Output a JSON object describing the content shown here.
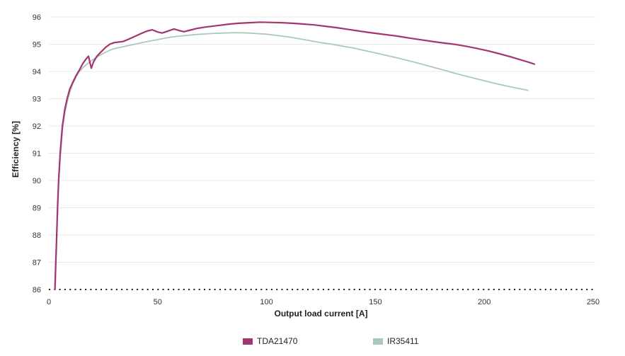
{
  "chart_data": {
    "type": "line",
    "title": "",
    "xlabel": "Output load current [A]",
    "ylabel": "Efficiency [%]",
    "xlim": [
      0,
      250
    ],
    "ylim": [
      86,
      96
    ],
    "x_ticks": [
      0,
      50,
      100,
      150,
      200,
      250
    ],
    "y_ticks": [
      86,
      87,
      88,
      89,
      90,
      91,
      92,
      93,
      94,
      95,
      96
    ],
    "grid": "horizontal-only",
    "baseline_style": "dotted-black-at-86",
    "legend_position": "bottom-center",
    "colors": {
      "gridline": "#e8e8e8",
      "baseline_dots": "#1d1d1d",
      "tick_text": "#33333c",
      "title_text": "#1f1f29",
      "background": "#ffffff"
    },
    "series": [
      {
        "name": "TDA21470",
        "color": "#a43572",
        "line_width": 2.2,
        "points": [
          [
            2.8,
            86.0
          ],
          [
            3.2,
            87.0
          ],
          [
            3.6,
            88.0
          ],
          [
            4.0,
            89.0
          ],
          [
            4.5,
            90.0
          ],
          [
            5.2,
            91.0
          ],
          [
            6.2,
            92.0
          ],
          [
            7.3,
            92.6
          ],
          [
            8.4,
            93.0
          ],
          [
            9.6,
            93.35
          ],
          [
            11,
            93.6
          ],
          [
            12.5,
            93.85
          ],
          [
            14,
            94.05
          ],
          [
            15.5,
            94.28
          ],
          [
            17,
            94.45
          ],
          [
            18.2,
            94.56
          ],
          [
            19.5,
            94.12
          ],
          [
            20.5,
            94.35
          ],
          [
            22,
            94.55
          ],
          [
            24,
            94.72
          ],
          [
            26,
            94.88
          ],
          [
            28,
            95.0
          ],
          [
            30,
            95.06
          ],
          [
            32,
            95.08
          ],
          [
            34,
            95.1
          ],
          [
            36,
            95.16
          ],
          [
            39,
            95.27
          ],
          [
            42,
            95.38
          ],
          [
            45,
            95.48
          ],
          [
            47.5,
            95.53
          ],
          [
            50,
            95.45
          ],
          [
            52,
            95.41
          ],
          [
            55,
            95.49
          ],
          [
            57.5,
            95.56
          ],
          [
            60,
            95.5
          ],
          [
            62,
            95.46
          ],
          [
            65,
            95.52
          ],
          [
            68,
            95.58
          ],
          [
            72,
            95.63
          ],
          [
            77,
            95.68
          ],
          [
            82,
            95.73
          ],
          [
            87,
            95.77
          ],
          [
            92,
            95.79
          ],
          [
            97,
            95.81
          ],
          [
            102,
            95.8
          ],
          [
            107,
            95.79
          ],
          [
            112,
            95.77
          ],
          [
            117,
            95.74
          ],
          [
            122,
            95.71
          ],
          [
            127,
            95.66
          ],
          [
            132,
            95.61
          ],
          [
            137,
            95.55
          ],
          [
            142,
            95.49
          ],
          [
            147,
            95.43
          ],
          [
            152,
            95.38
          ],
          [
            157,
            95.33
          ],
          [
            160,
            95.3
          ],
          [
            163,
            95.26
          ],
          [
            167,
            95.21
          ],
          [
            172,
            95.15
          ],
          [
            177,
            95.09
          ],
          [
            182,
            95.04
          ],
          [
            187,
            94.99
          ],
          [
            192,
            94.92
          ],
          [
            197,
            94.84
          ],
          [
            202,
            94.75
          ],
          [
            207,
            94.65
          ],
          [
            212,
            94.54
          ],
          [
            217,
            94.42
          ],
          [
            220,
            94.35
          ],
          [
            223,
            94.27
          ]
        ]
      },
      {
        "name": "IR35411",
        "color": "#aac8bb",
        "line_width": 1.8,
        "points": [
          [
            2.9,
            86.0
          ],
          [
            3.3,
            87.0
          ],
          [
            3.7,
            88.0
          ],
          [
            4.1,
            89.0
          ],
          [
            4.6,
            90.0
          ],
          [
            5.3,
            90.9
          ],
          [
            6.3,
            91.9
          ],
          [
            7.4,
            92.5
          ],
          [
            8.5,
            92.9
          ],
          [
            9.7,
            93.25
          ],
          [
            11,
            93.55
          ],
          [
            12.5,
            93.8
          ],
          [
            14,
            94.0
          ],
          [
            16,
            94.17
          ],
          [
            18,
            94.3
          ],
          [
            20,
            94.42
          ],
          [
            22,
            94.52
          ],
          [
            24,
            94.62
          ],
          [
            26,
            94.7
          ],
          [
            28,
            94.78
          ],
          [
            30,
            94.84
          ],
          [
            33,
            94.89
          ],
          [
            36,
            94.94
          ],
          [
            40,
            95.01
          ],
          [
            44,
            95.08
          ],
          [
            48,
            95.14
          ],
          [
            52,
            95.2
          ],
          [
            56,
            95.26
          ],
          [
            60,
            95.3
          ],
          [
            64,
            95.33
          ],
          [
            68,
            95.36
          ],
          [
            72,
            95.38
          ],
          [
            76,
            95.4
          ],
          [
            80,
            95.41
          ],
          [
            84,
            95.42
          ],
          [
            88,
            95.42
          ],
          [
            92,
            95.41
          ],
          [
            96,
            95.39
          ],
          [
            100,
            95.37
          ],
          [
            105,
            95.32
          ],
          [
            110,
            95.27
          ],
          [
            115,
            95.2
          ],
          [
            120,
            95.13
          ],
          [
            125,
            95.06
          ],
          [
            130,
            95.0
          ],
          [
            135,
            94.93
          ],
          [
            140,
            94.86
          ],
          [
            145,
            94.77
          ],
          [
            150,
            94.68
          ],
          [
            155,
            94.59
          ],
          [
            160,
            94.5
          ],
          [
            165,
            94.4
          ],
          [
            170,
            94.3
          ],
          [
            175,
            94.19
          ],
          [
            180,
            94.08
          ],
          [
            185,
            93.97
          ],
          [
            190,
            93.86
          ],
          [
            195,
            93.76
          ],
          [
            200,
            93.66
          ],
          [
            205,
            93.56
          ],
          [
            210,
            93.47
          ],
          [
            215,
            93.39
          ],
          [
            220,
            93.31
          ]
        ]
      }
    ]
  }
}
